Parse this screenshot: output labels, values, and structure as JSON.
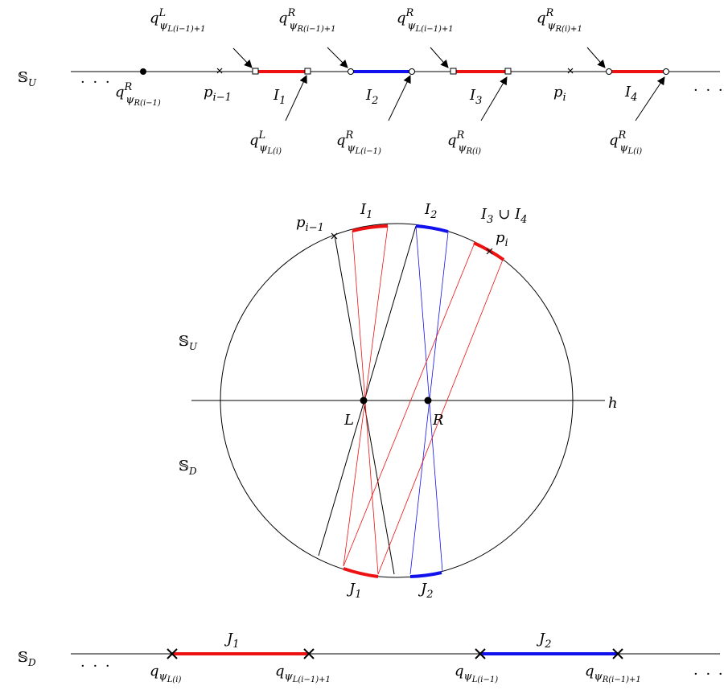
{
  "colors": {
    "red": "#ee1111",
    "blue": "#1111ee",
    "line": "#000000"
  },
  "top_line": {
    "set": {
      "main": "𝕊",
      "sub": "U"
    },
    "dots_left": "· · ·",
    "dots_right": "· · ·",
    "p_left": {
      "main": "p",
      "sub": "i−1"
    },
    "p_right": {
      "main": "p",
      "sub": "i"
    },
    "q_R_psiR_im1": {
      "main": "q",
      "sup": "R",
      "sub": "ψ",
      "subsub": "R(i−1)"
    },
    "q_L_psiL_im1p1": {
      "main": "q",
      "sup": "L",
      "sub": "ψ",
      "subsub": "L(i−1)+1"
    },
    "q_L_psiL_i": {
      "main": "q",
      "sup": "L",
      "sub": "ψ",
      "subsub": "L(i)"
    },
    "q_R_psiR_im1p1": {
      "main": "q",
      "sup": "R",
      "sub": "ψ",
      "subsub": "R(i−1)+1"
    },
    "q_R_psiL_im1": {
      "main": "q",
      "sup": "R",
      "sub": "ψ",
      "subsub": "L(i−1)"
    },
    "q_R_psiL_im1p1": {
      "main": "q",
      "sup": "R",
      "sub": "ψ",
      "subsub": "L(i−1)+1"
    },
    "q_R_psiR_i": {
      "main": "q",
      "sup": "R",
      "sub": "ψ",
      "subsub": "R(i)"
    },
    "q_R_psiR_ip1": {
      "main": "q",
      "sup": "R",
      "sub": "ψ",
      "subsub": "R(i)+1"
    },
    "q_R_psiL_i": {
      "main": "q",
      "sup": "R",
      "sub": "ψ",
      "subsub": "L(i)"
    },
    "intervals": [
      {
        "main": "I",
        "sub": "1"
      },
      {
        "main": "I",
        "sub": "2"
      },
      {
        "main": "I",
        "sub": "3"
      },
      {
        "main": "I",
        "sub": "4"
      }
    ]
  },
  "circle": {
    "set_U": {
      "main": "𝕊",
      "sub": "U"
    },
    "set_D": {
      "main": "𝕊",
      "sub": "D"
    },
    "h": "h",
    "L": "L",
    "R": "R",
    "p_left": {
      "main": "p",
      "sub": "i−1"
    },
    "p_right": {
      "main": "p",
      "sub": "i"
    },
    "I1": {
      "main": "I",
      "sub": "1"
    },
    "I2": {
      "main": "I",
      "sub": "2"
    },
    "I34": {
      "a": "I",
      "a_sub": "3",
      "cup": " ∪ ",
      "b": "I",
      "b_sub": "4"
    },
    "J1": {
      "main": "J",
      "sub": "1"
    },
    "J2": {
      "main": "J",
      "sub": "2"
    }
  },
  "bottom_line": {
    "set": {
      "main": "𝕊",
      "sub": "D"
    },
    "dots_left": "· · ·",
    "dots_right": "· · ·",
    "J1": {
      "main": "J",
      "sub": "1"
    },
    "J2": {
      "main": "J",
      "sub": "2"
    },
    "q1": {
      "main": "q",
      "sub": "ψ",
      "subsub": "L(i)"
    },
    "q2": {
      "main": "q",
      "sub": "ψ",
      "subsub": "L(i−1)+1"
    },
    "q3": {
      "main": "q",
      "sub": "ψ",
      "subsub": "L(i−1)"
    },
    "q4": {
      "main": "q",
      "sub": "ψ",
      "subsub": "R(i−1)+1"
    }
  }
}
